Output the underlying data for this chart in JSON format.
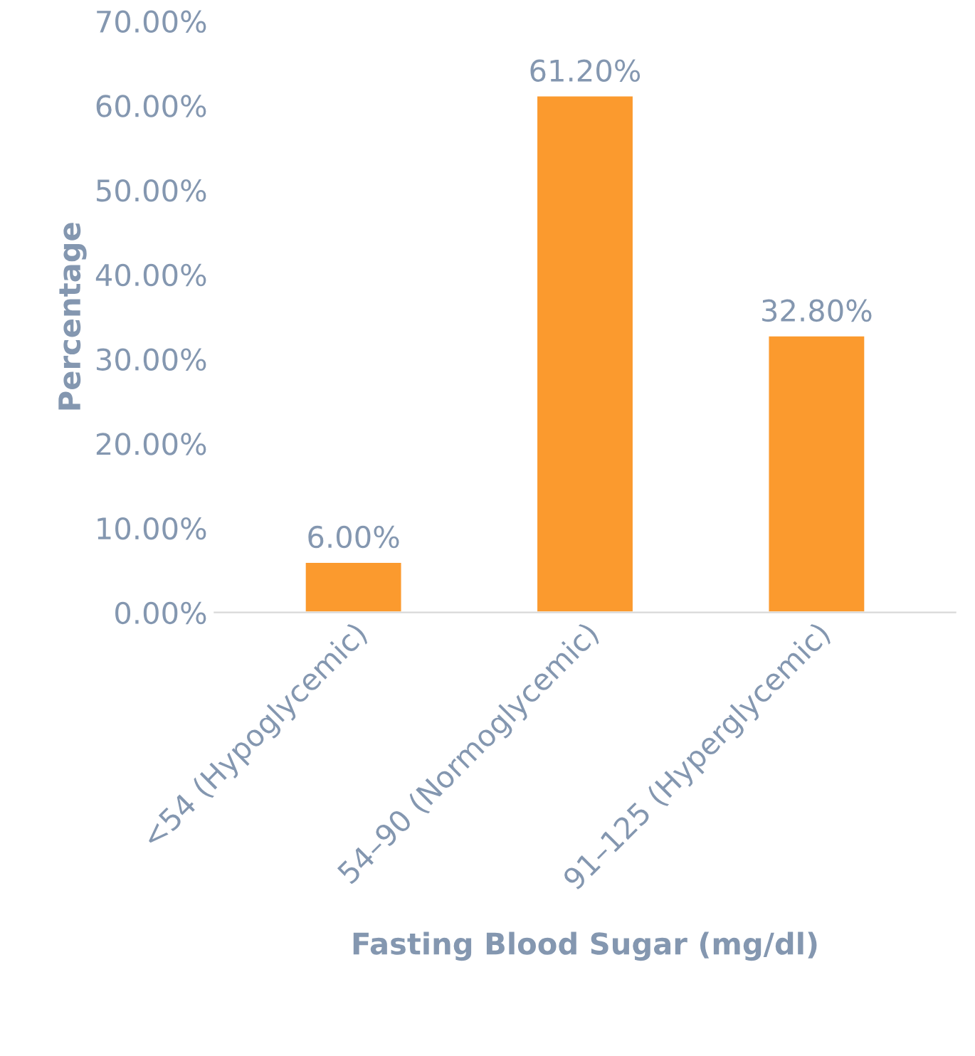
{
  "chart_data": {
    "type": "bar",
    "xlabel": "Fasting Blood Sugar (mg/dl)",
    "ylabel": "Percentage",
    "categories": [
      "<54 (Hypoglycemic)",
      "54–90 (Normoglycemic)",
      "91–125 (Hyperglycemic)"
    ],
    "values": [
      6.0,
      61.2,
      32.8
    ],
    "color": "#fb9a2e",
    "value_labels": [
      "6.00%",
      "61.20%",
      "32.80%"
    ],
    "ylim": [
      0,
      70
    ],
    "yticks": [
      {
        "value": 0,
        "label": "0.00%"
      },
      {
        "value": 10,
        "label": "10.00%"
      },
      {
        "value": 20,
        "label": "20.00%"
      },
      {
        "value": 30,
        "label": "30.00%"
      },
      {
        "value": 40,
        "label": "40.00%"
      },
      {
        "value": 50,
        "label": "50.00%"
      },
      {
        "value": 60,
        "label": "60.00%"
      },
      {
        "value": 70,
        "label": "70.00%"
      }
    ],
    "grid": false,
    "legend": false
  }
}
